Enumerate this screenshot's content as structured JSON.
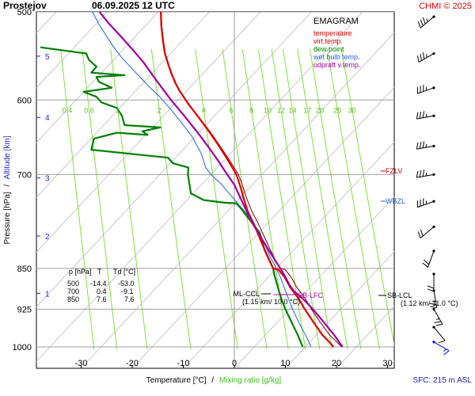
{
  "header": {
    "station": "Prostejov",
    "datetime": "06.09.2025 12 UTC",
    "credit": "CHMI © 2025"
  },
  "legend": {
    "title": "EMAGRAM",
    "items": [
      {
        "label": "temperature",
        "color": "#e00000"
      },
      {
        "label": "virt.temp.",
        "color": "#e00000"
      },
      {
        "label": "dew point",
        "color": "#008000"
      },
      {
        "label": "wet bulb temp.",
        "color": "#1e64dc"
      },
      {
        "label": "udpraft v.temp.",
        "color": "#a000a0"
      }
    ]
  },
  "footer": {
    "xlabel_temp": "Temperature [°C]",
    "xlabel_sep": "/",
    "xlabel_mix": "Mixing ratio [g/kg]",
    "sfc": "SFC: 215 m ASL"
  },
  "yaxis": {
    "pressure_label": "Pressure [hPa]",
    "sep": "/",
    "altitude_label": "Altitude [km]"
  },
  "table": {
    "header": [
      "p [hPa]",
      "T",
      "Td [°C]"
    ],
    "rows": [
      [
        "500",
        "-14.4",
        "-53.0"
      ],
      [
        "700",
        "0.4",
        "-9.1"
      ],
      [
        "850",
        "7.6",
        "7.6"
      ]
    ]
  },
  "levels": {
    "fzlv": "FZLV",
    "wbzl": "WBZL",
    "sb_lfc": "SB-LFC",
    "ml_ccl": "ML-CCL",
    "ml_ccl_detail": "(1.15 km/ 10.0 °C)",
    "sb_lcl": "SB-LCL",
    "sb_lcl_detail": "(1.12 km/ 11.0 °C)"
  },
  "colors": {
    "temperature": "#e00000",
    "dewpoint": "#008000",
    "wetbulb": "#1e64dc",
    "parcel": "#a000a0",
    "mixing": "#80e040",
    "grid": "#a0a0a0",
    "altitude": "#1e28c8"
  },
  "chart_data": {
    "type": "line",
    "title": "EMAGRAM",
    "xlabel": "Temperature [°C] / Mixing ratio [g/kg]",
    "ylabel": "Pressure [hPa] / Altitude [km]",
    "xlim": [
      -38,
      33
    ],
    "ylim": [
      1005,
      500
    ],
    "y_scale": "log",
    "x_ticks": [
      -30,
      -20,
      -10,
      0,
      10,
      20,
      30
    ],
    "pressure_ticks": [
      500,
      600,
      700,
      850,
      925,
      1000
    ],
    "altitude_ticks": [
      {
        "km": 1,
        "p": 895
      },
      {
        "km": 2,
        "p": 795
      },
      {
        "km": 3,
        "p": 705
      },
      {
        "km": 4,
        "p": 622
      },
      {
        "km": 5,
        "p": 548
      }
    ],
    "mixing_ratio_labels": [
      "0.4",
      "0.6",
      "1",
      "2",
      "4",
      "6",
      "8",
      "10",
      "12",
      "14",
      "17",
      "20",
      "25",
      "30"
    ],
    "mixing_ratio_values": [
      0.4,
      0.6,
      1,
      2,
      4,
      6,
      8,
      10,
      12,
      14,
      17,
      20,
      25,
      30
    ],
    "mixing_ratio_label_pressure": 612,
    "series": [
      {
        "name": "temperature",
        "points": [
          [
            19.4,
            1000
          ],
          [
            18.6,
            990
          ],
          [
            17.2,
            975
          ],
          [
            15.5,
            950
          ],
          [
            13.8,
            925
          ],
          [
            12.6,
            905
          ],
          [
            11.0,
            885
          ],
          [
            9.8,
            865
          ],
          [
            8.6,
            852
          ],
          [
            7.6,
            850
          ],
          [
            6.8,
            835
          ],
          [
            5.8,
            815
          ],
          [
            4.8,
            795
          ],
          [
            3.8,
            775
          ],
          [
            2.6,
            755
          ],
          [
            1.8,
            735
          ],
          [
            1.2,
            718
          ],
          [
            0.4,
            700
          ],
          [
            -1.2,
            680
          ],
          [
            -3.0,
            660
          ],
          [
            -5.0,
            640
          ],
          [
            -7.0,
            622
          ],
          [
            -9.0,
            605
          ],
          [
            -10.6,
            590
          ],
          [
            -11.5,
            580
          ],
          [
            -12.2,
            570
          ],
          [
            -12.8,
            560
          ],
          [
            -13.6,
            545
          ],
          [
            -14.0,
            530
          ],
          [
            -14.3,
            515
          ],
          [
            -14.4,
            500
          ]
        ]
      },
      {
        "name": "virt.temp.",
        "points": [
          [
            21.0,
            1000
          ],
          [
            20.1,
            990
          ],
          [
            18.6,
            975
          ],
          [
            16.8,
            950
          ],
          [
            15.1,
            925
          ],
          [
            13.9,
            905
          ],
          [
            12.3,
            885
          ],
          [
            11.1,
            865
          ],
          [
            9.9,
            852
          ],
          [
            8.9,
            850
          ],
          [
            8.0,
            835
          ],
          [
            6.9,
            815
          ],
          [
            5.8,
            795
          ],
          [
            4.7,
            775
          ],
          [
            3.4,
            755
          ],
          [
            2.4,
            735
          ],
          [
            1.7,
            718
          ],
          [
            0.8,
            700
          ],
          [
            -0.9,
            680
          ],
          [
            -2.8,
            660
          ],
          [
            -4.8,
            640
          ],
          [
            -6.9,
            622
          ],
          [
            -8.9,
            605
          ],
          [
            -10.5,
            590
          ],
          [
            -11.4,
            580
          ],
          [
            -12.1,
            570
          ],
          [
            -12.7,
            560
          ],
          [
            -13.5,
            545
          ],
          [
            -13.9,
            530
          ],
          [
            -14.2,
            515
          ],
          [
            -14.3,
            500
          ]
        ]
      },
      {
        "name": "dew point",
        "points": [
          [
            13.4,
            1000
          ],
          [
            13.0,
            990
          ],
          [
            12.4,
            975
          ],
          [
            11.2,
            950
          ],
          [
            10.0,
            925
          ],
          [
            9.2,
            905
          ],
          [
            8.4,
            880
          ],
          [
            7.8,
            860
          ],
          [
            7.6,
            850
          ],
          [
            6.0,
            820
          ],
          [
            5.0,
            790
          ],
          [
            1.2,
            750
          ],
          [
            0.4,
            743
          ],
          [
            -2.0,
            742
          ],
          [
            -6.0,
            738
          ],
          [
            -8.5,
            728
          ],
          [
            -9.1,
            700
          ],
          [
            -9.0,
            690
          ],
          [
            -12.0,
            684
          ],
          [
            -13.0,
            676
          ],
          [
            -18.5,
            672
          ],
          [
            -28.0,
            665
          ],
          [
            -27.5,
            650
          ],
          [
            -23.0,
            642
          ],
          [
            -17.0,
            645
          ],
          [
            -18.0,
            640
          ],
          [
            -14.5,
            635
          ],
          [
            -21.5,
            632
          ],
          [
            -22.0,
            620
          ],
          [
            -23.0,
            610
          ],
          [
            -26.0,
            603
          ],
          [
            -27.0,
            596
          ],
          [
            -29.5,
            590
          ],
          [
            -24.0,
            585
          ],
          [
            -26.5,
            578
          ],
          [
            -27.0,
            572
          ],
          [
            -21.5,
            570
          ],
          [
            -28.0,
            567
          ],
          [
            -27.0,
            560
          ],
          [
            -28.5,
            552
          ],
          [
            -29.0,
            545
          ],
          [
            -35.5,
            540
          ],
          [
            -38.0,
            538
          ]
        ]
      },
      {
        "name": "wet bulb temp.",
        "points": [
          [
            15.0,
            1000
          ],
          [
            14.6,
            990
          ],
          [
            13.9,
            975
          ],
          [
            12.6,
            950
          ],
          [
            11.4,
            925
          ],
          [
            10.6,
            905
          ],
          [
            9.8,
            885
          ],
          [
            9.0,
            865
          ],
          [
            8.2,
            850
          ],
          [
            7.0,
            830
          ],
          [
            5.8,
            805
          ],
          [
            4.6,
            785
          ],
          [
            3.0,
            765
          ],
          [
            1.2,
            748
          ],
          [
            -0.8,
            730
          ],
          [
            -2.8,
            712
          ],
          [
            -4.6,
            700
          ],
          [
            -5.6,
            690
          ],
          [
            -6.5,
            670
          ],
          [
            -8.2,
            648
          ],
          [
            -10.2,
            630
          ],
          [
            -12.4,
            612
          ],
          [
            -14.6,
            596
          ],
          [
            -16.8,
            583
          ],
          [
            -18.5,
            572
          ],
          [
            -20.4,
            560
          ],
          [
            -22.0,
            550
          ],
          [
            -23.6,
            538
          ],
          [
            -25.0,
            526
          ],
          [
            -26.4,
            514
          ],
          [
            -27.8,
            500
          ]
        ]
      },
      {
        "name": "udpraft v.temp.",
        "points": [
          [
            21.2,
            1000
          ],
          [
            19.5,
            975
          ],
          [
            17.5,
            950
          ],
          [
            15.4,
            925
          ],
          [
            13.4,
            905
          ],
          [
            11.8,
            892
          ],
          [
            10.8,
            880
          ],
          [
            10.0,
            865
          ],
          [
            9.0,
            850
          ],
          [
            7.2,
            825
          ],
          [
            5.4,
            800
          ],
          [
            3.6,
            775
          ],
          [
            1.8,
            745
          ],
          [
            0.0,
            715
          ],
          [
            -1.4,
            700
          ],
          [
            -3.2,
            680
          ],
          [
            -5.2,
            660
          ],
          [
            -7.4,
            640
          ],
          [
            -9.8,
            620
          ],
          [
            -12.4,
            600
          ],
          [
            -14.2,
            585
          ],
          [
            -16.0,
            570
          ],
          [
            -17.8,
            555
          ],
          [
            -20.0,
            540
          ],
          [
            -22.4,
            525
          ],
          [
            -24.6,
            512
          ],
          [
            -26.4,
            500
          ]
        ]
      }
    ],
    "level_markers": [
      {
        "label": "FZLV",
        "p": 695
      },
      {
        "label": "WBZL",
        "p": 730
      },
      {
        "label": "SB-LFC",
        "p": 880
      },
      {
        "label": "ML-CCL",
        "p": 874,
        "height_km": 1.15,
        "temp_c": 10.0
      },
      {
        "label": "SB-LCL",
        "p": 878,
        "height_km": 1.12,
        "temp_c": 11.0
      }
    ],
    "wind_barbs": [
      {
        "p": 505,
        "dir": 230,
        "speed": 25
      },
      {
        "p": 545,
        "dir": 240,
        "speed": 25
      },
      {
        "p": 585,
        "dir": 250,
        "speed": 25
      },
      {
        "p": 620,
        "dir": 260,
        "speed": 25
      },
      {
        "p": 660,
        "dir": 260,
        "speed": 25
      },
      {
        "p": 700,
        "dir": 260,
        "speed": 25
      },
      {
        "p": 740,
        "dir": 250,
        "speed": 25
      },
      {
        "p": 780,
        "dir": 230,
        "speed": 20
      },
      {
        "p": 820,
        "dir": 200,
        "speed": 20
      },
      {
        "p": 860,
        "dir": 180,
        "speed": 20
      },
      {
        "p": 890,
        "dir": 170,
        "speed": 15
      },
      {
        "p": 925,
        "dir": 150,
        "speed": 15
      },
      {
        "p": 960,
        "dir": 140,
        "speed": 10
      },
      {
        "p": 990,
        "dir": 120,
        "speed": 5
      }
    ]
  }
}
